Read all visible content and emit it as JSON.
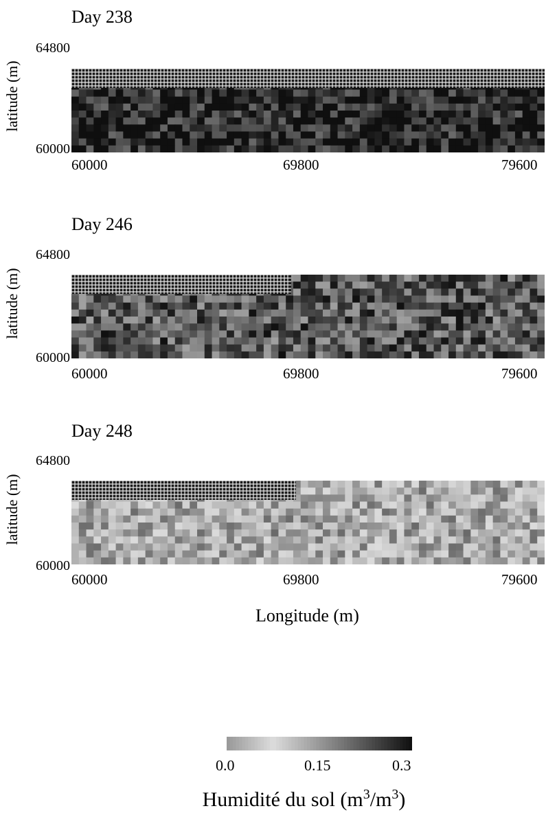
{
  "chart_data": [
    {
      "type": "heatmap",
      "title": "Day 238",
      "ylabel": "latitude (m)",
      "xlabel": "",
      "xlim": [
        60000,
        79600
      ],
      "ylim": [
        60000,
        64800
      ],
      "x_ticks": [
        "60000",
        "69800",
        "79600"
      ],
      "y_ticks": [
        "64800",
        "60000"
      ],
      "mean_value": 0.28,
      "masked_region": {
        "x": [
          60000,
          79600
        ],
        "y": [
          63700,
          64800
        ]
      },
      "grid": false
    },
    {
      "type": "heatmap",
      "title": "Day 246",
      "ylabel": "latitude (m)",
      "xlabel": "",
      "xlim": [
        60000,
        79600
      ],
      "ylim": [
        60000,
        64800
      ],
      "x_ticks": [
        "60000",
        "69800",
        "79600"
      ],
      "y_ticks": [
        "64800",
        "60000"
      ],
      "mean_value": 0.22,
      "masked_region": {
        "x": [
          60000,
          69100
        ],
        "y": [
          63700,
          64800
        ]
      },
      "grid": false
    },
    {
      "type": "heatmap",
      "title": "Day 248",
      "ylabel": "latitude (m)",
      "xlabel": "Longitude (m)",
      "xlim": [
        60000,
        79600
      ],
      "ylim": [
        60000,
        64800
      ],
      "x_ticks": [
        "60000",
        "69800",
        "79600"
      ],
      "y_ticks": [
        "64800",
        "60000"
      ],
      "mean_value": 0.12,
      "masked_region": {
        "x": [
          60000,
          69300
        ],
        "y": [
          63700,
          64800
        ]
      },
      "grid": false
    }
  ],
  "colorbar": {
    "title_text": "Humidité du sol (m",
    "title_sup1": "3",
    "title_mid": "/m",
    "title_sup2": "3",
    "title_end": ")",
    "ticks": [
      "0.0",
      "0.15",
      "0.3"
    ],
    "range": [
      0.0,
      0.3
    ]
  }
}
